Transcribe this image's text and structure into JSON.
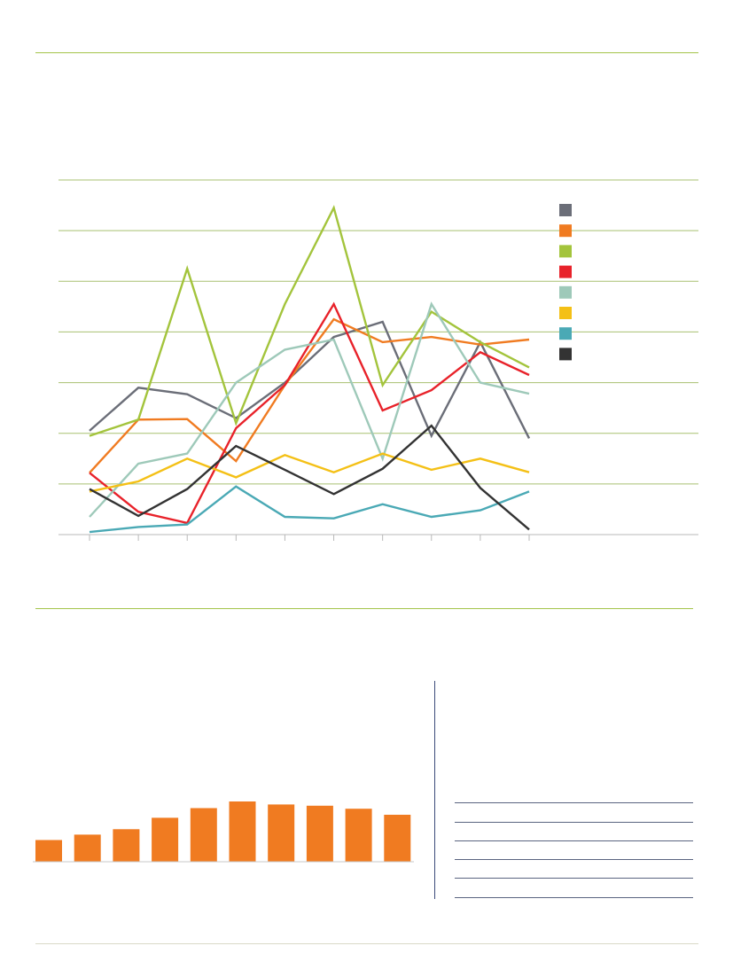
{
  "chart_data": [
    {
      "type": "line",
      "x": [
        1,
        2,
        3,
        4,
        5,
        6,
        7,
        8,
        9,
        10
      ],
      "ylim": [
        0,
        7
      ],
      "grid": true,
      "legend": "right",
      "series": [
        {
          "color": "#6b6e78",
          "values": [
            2.05,
            2.9,
            2.77,
            2.3,
            3.0,
            3.9,
            4.2,
            1.95,
            3.8,
            1.9
          ]
        },
        {
          "color": "#f07b21",
          "values": [
            1.22,
            2.27,
            2.28,
            1.45,
            2.95,
            4.25,
            3.8,
            3.9,
            3.75,
            3.85
          ]
        },
        {
          "color": "#a3c43c",
          "values": [
            1.95,
            2.27,
            5.25,
            2.2,
            4.55,
            6.45,
            2.95,
            4.4,
            3.8,
            3.3
          ]
        },
        {
          "color": "#e8222a",
          "values": [
            1.22,
            0.45,
            0.23,
            2.1,
            2.95,
            4.55,
            2.45,
            2.85,
            3.6,
            3.15
          ]
        },
        {
          "color": "#9ec9b9",
          "values": [
            0.35,
            1.4,
            1.6,
            3.0,
            3.65,
            3.85,
            1.5,
            4.55,
            3.0,
            2.78
          ]
        },
        {
          "color": "#f4c016",
          "values": [
            0.85,
            1.05,
            1.5,
            1.13,
            1.57,
            1.23,
            1.6,
            1.28,
            1.5,
            1.23
          ]
        },
        {
          "color": "#4aa9b5",
          "values": [
            0.05,
            0.15,
            0.2,
            0.95,
            0.35,
            0.32,
            0.6,
            0.35,
            0.48,
            0.85
          ]
        },
        {
          "color": "#333333",
          "values": [
            0.9,
            0.37,
            0.9,
            1.75,
            1.28,
            0.8,
            1.3,
            2.15,
            0.92,
            0.1
          ]
        }
      ]
    },
    {
      "type": "bar",
      "ylim": [
        0,
        100
      ],
      "values": [
        36,
        45,
        54,
        73,
        89,
        100,
        95,
        93,
        88,
        78
      ],
      "color": "#f07b21"
    }
  ]
}
